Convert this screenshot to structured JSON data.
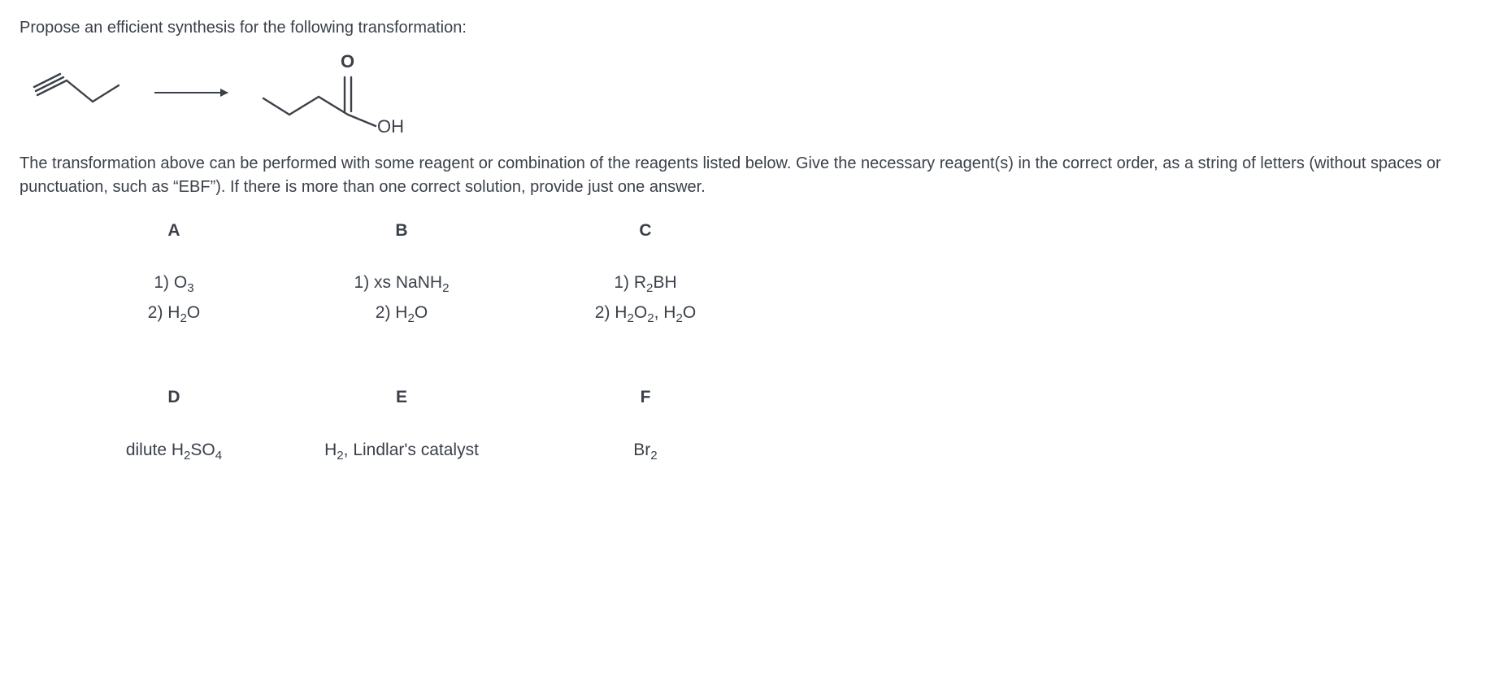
{
  "prompt": "Propose an efficient synthesis for the following transformation:",
  "explain": "The transformation above can be performed with some reagent or combination of the reagents listed below. Give the necessary reagent(s) in the correct order, as a string of letters (without spaces or punctuation, such as “EBF”). If there is more than one correct solution, provide just one answer.",
  "scheme": {
    "start_label": "1-butyne",
    "product_label": "butanoic acid",
    "product_OH_text": "OH",
    "product_O_text": "O",
    "colors": {
      "bond": "#3b4049",
      "text": "#3b4049"
    }
  },
  "reagents": {
    "A": {
      "label": "A",
      "lines_html": [
        "1) O<sub>3</sub>",
        "2) H<sub>2</sub>O"
      ]
    },
    "B": {
      "label": "B",
      "lines_html": [
        "1) xs NaNH<sub>2</sub>",
        "2) H<sub>2</sub>O"
      ]
    },
    "C": {
      "label": "C",
      "lines_html": [
        "1) R<sub>2</sub>BH",
        "2) H<sub>2</sub>O<sub>2</sub>, H<sub>2</sub>O"
      ]
    },
    "D": {
      "label": "D",
      "lines_html": [
        "dilute H<sub>2</sub>SO<sub>4</sub>"
      ]
    },
    "E": {
      "label": "E",
      "lines_html": [
        "H<sub>2</sub>, Lindlar's catalyst"
      ]
    },
    "F": {
      "label": "F",
      "lines_html": [
        "Br<sub>2</sub>"
      ]
    }
  }
}
